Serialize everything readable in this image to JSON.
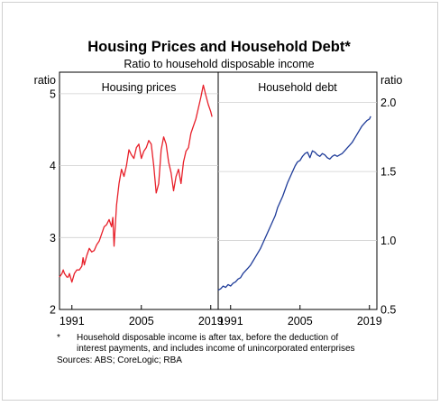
{
  "chart_data": {
    "type": "line",
    "title": "Housing Prices and Household Debt*",
    "subtitle": "Ratio to household disposable income",
    "panels": [
      {
        "title": "Housing prices",
        "unit_label": "ratio",
        "color": "#e8202a",
        "x_ticks": [
          "1991",
          "2005",
          "2019"
        ],
        "y_ticks": [
          "2",
          "3",
          "4",
          "5"
        ],
        "ylim": [
          2,
          5.3
        ],
        "xlim": [
          1988.5,
          2020.5
        ],
        "series": {
          "x": [
            1988.5,
            1989.0,
            1989.25,
            1989.5,
            1990.0,
            1990.25,
            1990.5,
            1991.0,
            1991.5,
            1992.0,
            1992.5,
            1993.0,
            1993.25,
            1993.5,
            1994.0,
            1994.5,
            1995.0,
            1995.5,
            1996.0,
            1996.5,
            1997.0,
            1997.5,
            1998.0,
            1998.5,
            1999.0,
            1999.25,
            1999.5,
            2000.0,
            2000.25,
            2000.5,
            2001.0,
            2001.5,
            2002.0,
            2002.5,
            2003.0,
            2003.5,
            2004.0,
            2004.5,
            2005.0,
            2005.5,
            2006.0,
            2006.5,
            2007.0,
            2007.5,
            2008.0,
            2008.5,
            2009.0,
            2009.5,
            2010.0,
            2010.5,
            2011.0,
            2011.5,
            2012.0,
            2012.5,
            2013.0,
            2013.5,
            2014.0,
            2014.5,
            2015.0,
            2015.5,
            2016.0,
            2016.5,
            2017.0,
            2017.5,
            2018.0,
            2018.5,
            2019.0,
            2019.25
          ],
          "y": [
            2.45,
            2.5,
            2.55,
            2.5,
            2.45,
            2.45,
            2.5,
            2.38,
            2.5,
            2.55,
            2.55,
            2.6,
            2.72,
            2.62,
            2.75,
            2.85,
            2.8,
            2.82,
            2.9,
            2.95,
            3.05,
            3.15,
            3.18,
            3.25,
            3.15,
            3.28,
            2.88,
            3.45,
            3.6,
            3.75,
            3.95,
            3.85,
            4.0,
            4.22,
            4.15,
            4.1,
            4.25,
            4.3,
            4.1,
            4.2,
            4.25,
            4.35,
            4.3,
            4.0,
            3.62,
            3.75,
            4.22,
            4.4,
            4.3,
            4.05,
            3.9,
            3.65,
            3.85,
            3.95,
            3.75,
            4.05,
            4.2,
            4.25,
            4.45,
            4.55,
            4.65,
            4.8,
            4.95,
            5.12,
            4.98,
            4.85,
            4.75,
            4.68
          ]
        }
      },
      {
        "title": "Household debt",
        "unit_label": "ratio",
        "color": "#1f3c99",
        "x_ticks": [
          "1991",
          "2005",
          "2019"
        ],
        "y_ticks": [
          "0.5",
          "1.0",
          "1.5",
          "2.0"
        ],
        "ylim": [
          0.5,
          2.22
        ],
        "xlim": [
          1988.5,
          2020.5
        ],
        "series": {
          "x": [
            1988.5,
            1989.0,
            1989.5,
            1990.0,
            1990.5,
            1991.0,
            1991.5,
            1992.0,
            1992.5,
            1993.0,
            1993.5,
            1994.0,
            1994.5,
            1995.0,
            1995.5,
            1996.0,
            1996.5,
            1997.0,
            1997.5,
            1998.0,
            1998.5,
            1999.0,
            1999.5,
            2000.0,
            2000.5,
            2001.0,
            2001.5,
            2002.0,
            2002.5,
            2003.0,
            2003.5,
            2004.0,
            2004.5,
            2005.0,
            2005.5,
            2006.0,
            2006.5,
            2007.0,
            2007.5,
            2008.0,
            2008.5,
            2009.0,
            2009.5,
            2010.0,
            2010.5,
            2011.0,
            2011.5,
            2012.0,
            2012.5,
            2013.0,
            2013.5,
            2014.0,
            2014.5,
            2015.0,
            2015.5,
            2016.0,
            2016.5,
            2017.0,
            2017.5,
            2018.0,
            2018.5,
            2019.0,
            2019.25
          ],
          "y": [
            0.64,
            0.65,
            0.67,
            0.66,
            0.68,
            0.67,
            0.69,
            0.7,
            0.72,
            0.73,
            0.76,
            0.78,
            0.8,
            0.82,
            0.85,
            0.88,
            0.91,
            0.94,
            0.98,
            1.02,
            1.06,
            1.1,
            1.14,
            1.18,
            1.24,
            1.28,
            1.32,
            1.37,
            1.42,
            1.46,
            1.5,
            1.54,
            1.57,
            1.58,
            1.61,
            1.63,
            1.64,
            1.6,
            1.65,
            1.64,
            1.62,
            1.61,
            1.63,
            1.62,
            1.6,
            1.59,
            1.61,
            1.62,
            1.61,
            1.62,
            1.63,
            1.65,
            1.67,
            1.69,
            1.71,
            1.74,
            1.77,
            1.8,
            1.83,
            1.85,
            1.87,
            1.88,
            1.9
          ]
        }
      }
    ],
    "footnote_marker": "*",
    "footnote_lines": [
      "Household disposable income is after tax, before the deduction of",
      "interest payments, and includes income of unincorporated enterprises"
    ],
    "sources": "Sources: ABS; CoreLogic; RBA"
  }
}
